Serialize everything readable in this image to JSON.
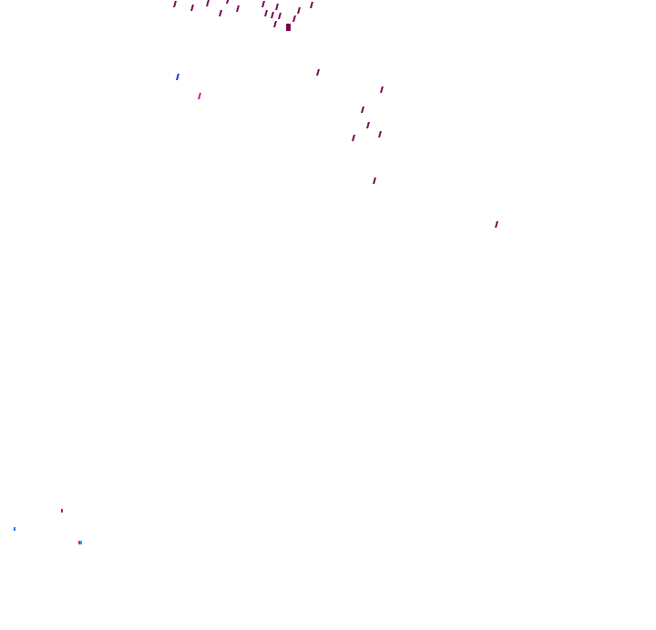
{
  "colors": {
    "background": "#ffffff",
    "primary_mark": "#7a0050",
    "blue_mark": "#2030d0",
    "magenta_mark": "#e0109a",
    "pink_mark": "#c0107a",
    "light_blue_mark": "#3070f0",
    "cyan_mark": "#10b0f0"
  }
}
